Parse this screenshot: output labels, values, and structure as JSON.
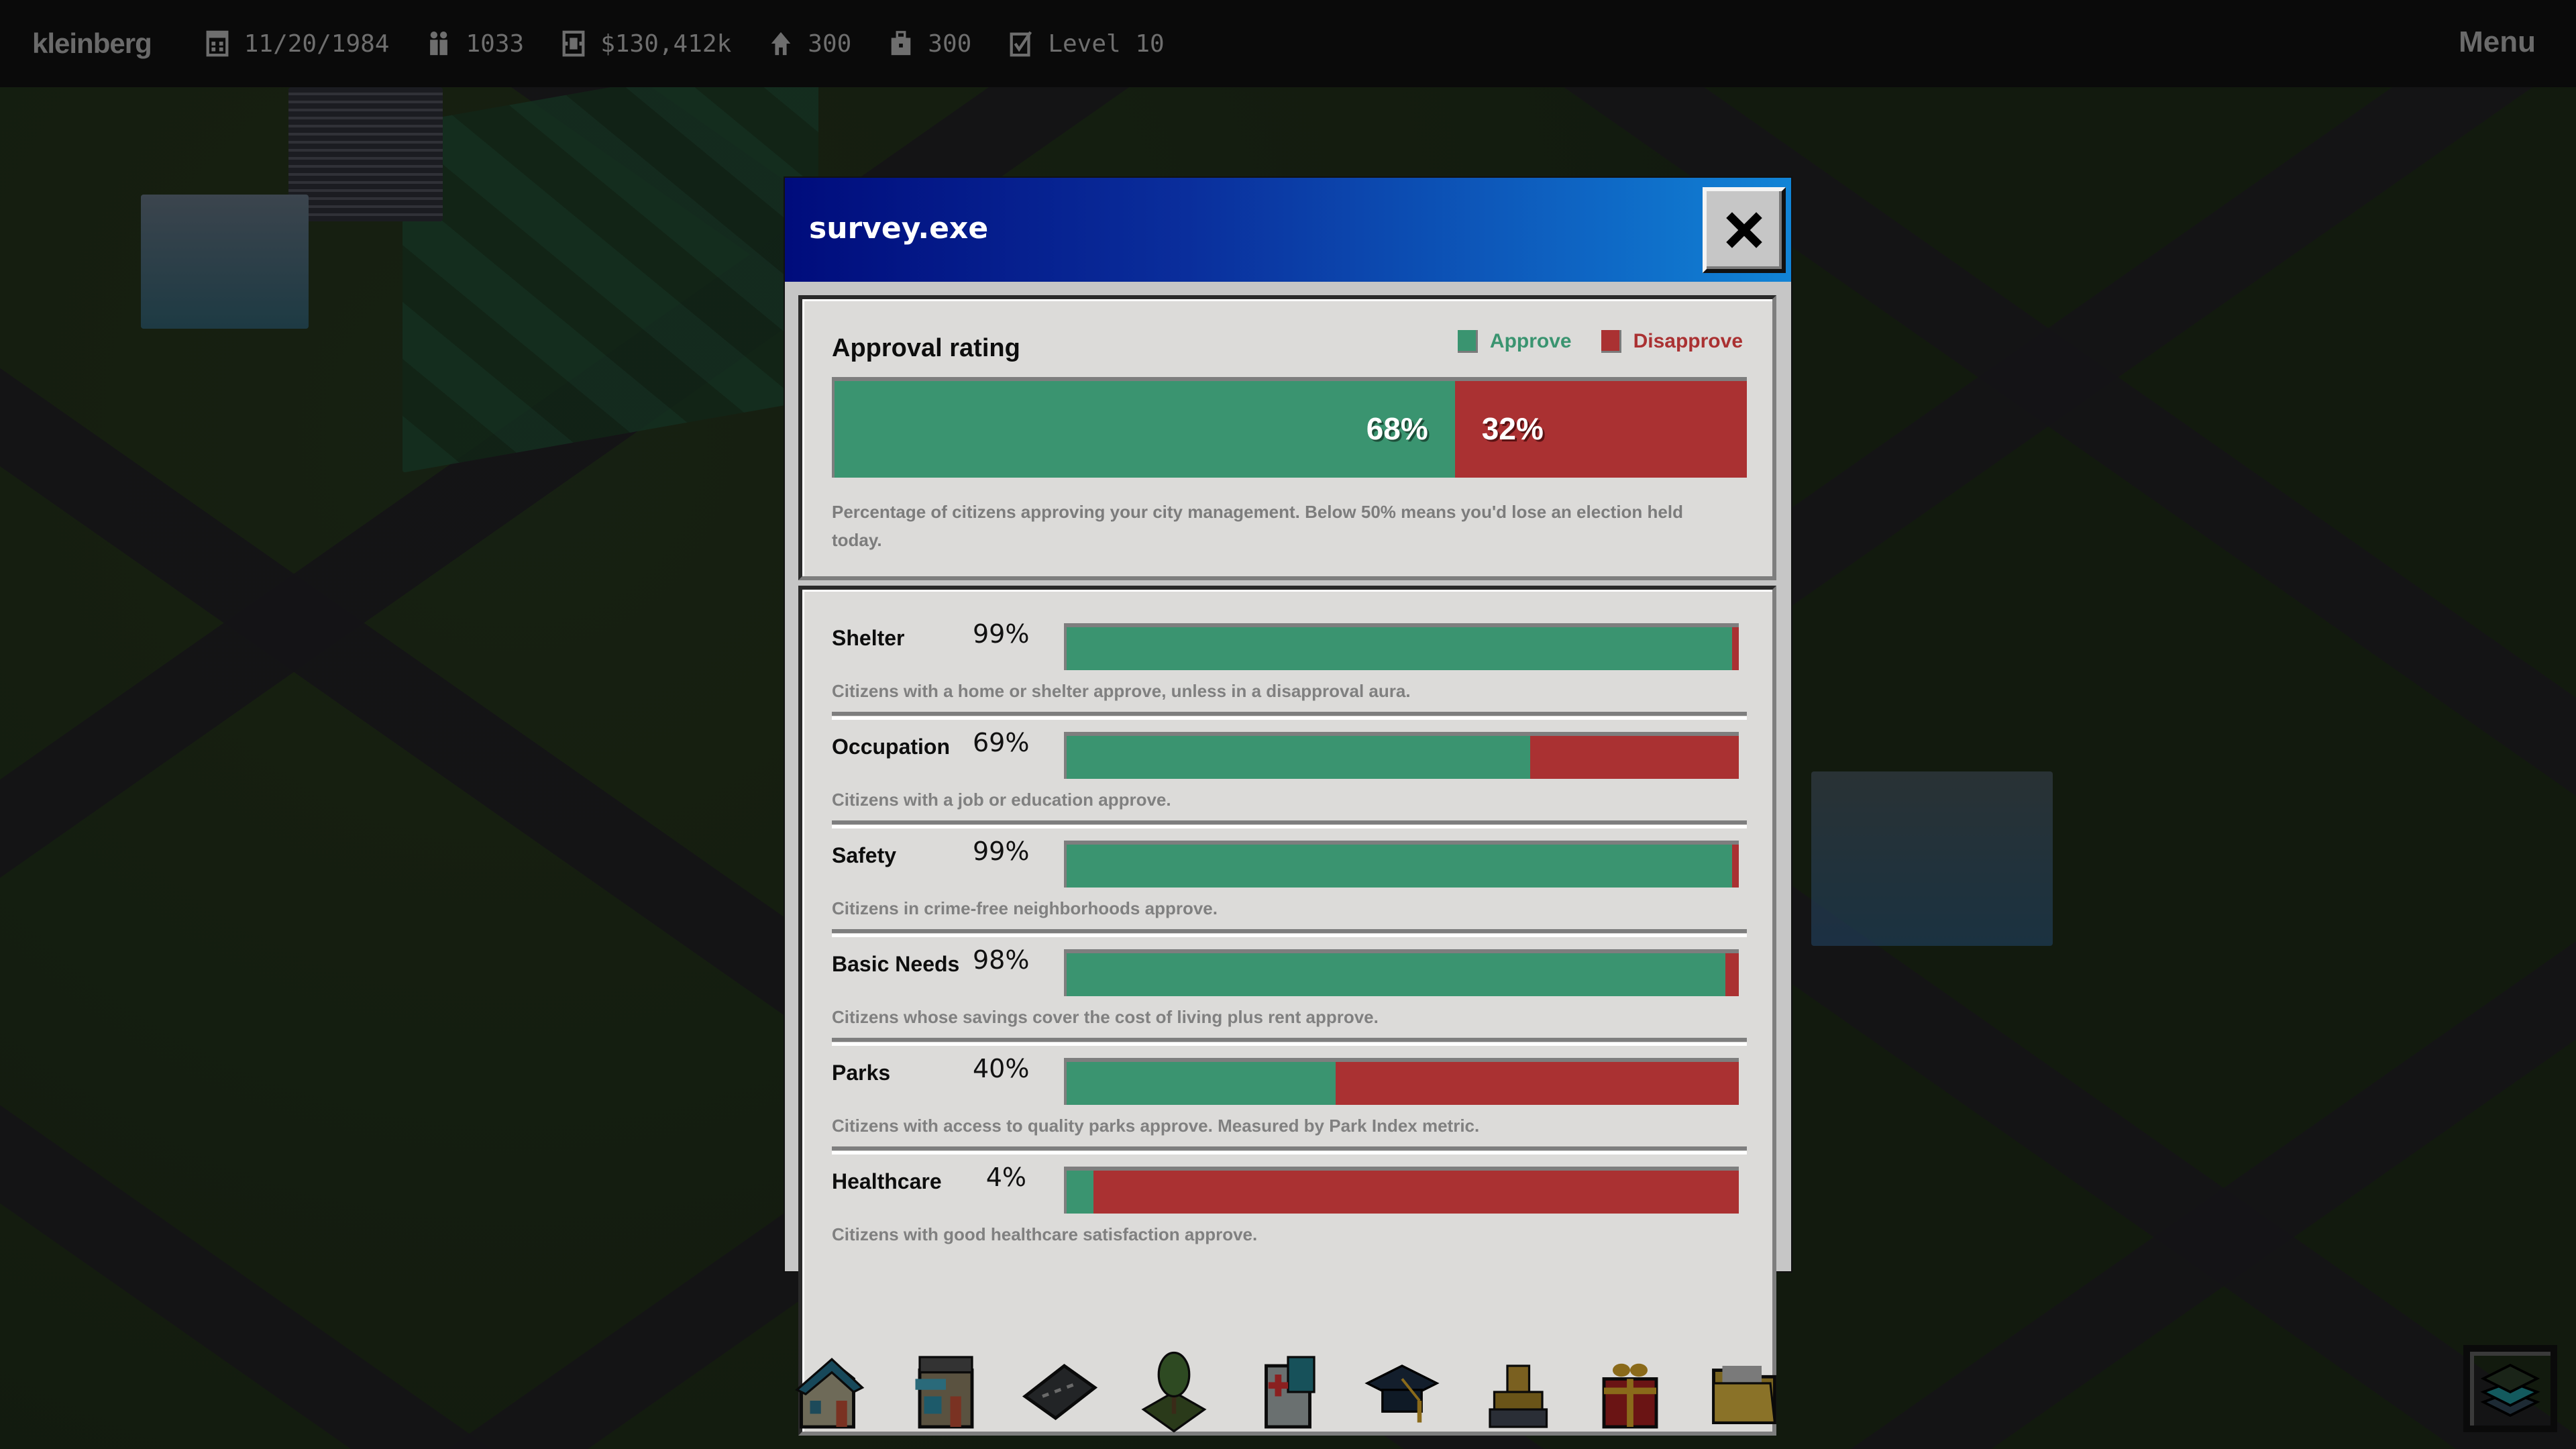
{
  "topbar": {
    "city_name": "kleinberg",
    "date": "11/20/1984",
    "population": "1033",
    "funds": "$130,412k",
    "housing": "300",
    "jobs": "300",
    "level": "Level 10",
    "menu_label": "Menu",
    "icons": [
      "calendar-icon",
      "people-icon",
      "money-icon",
      "house-icon",
      "briefcase-icon",
      "checkbox-icon"
    ]
  },
  "dialog": {
    "title": "survey.exe",
    "close_label": "X",
    "approval": {
      "title": "Approval rating",
      "legend": [
        {
          "label": "Approve",
          "color": "#3a9470"
        },
        {
          "label": "Disapprove",
          "color": "#aa3132"
        }
      ],
      "approve_pct": 68,
      "disapprove_pct": 32,
      "approve_label": "68%",
      "disapprove_label": "32%",
      "description": "Percentage of citizens approving your city management. Below 50% means you'd lose an election held today."
    },
    "factors": [
      {
        "name": "Shelter",
        "pct_label": "99%",
        "pct": 99,
        "description": "Citizens with a home or shelter approve, unless in a disapproval aura."
      },
      {
        "name": "Occupation",
        "pct_label": "69%",
        "pct": 69,
        "description": "Citizens with a job or education approve."
      },
      {
        "name": "Safety",
        "pct_label": "99%",
        "pct": 99,
        "description": "Citizens in crime-free neighborhoods approve."
      },
      {
        "name": "Basic Needs",
        "pct_label": "98%",
        "pct": 98,
        "description": "Citizens whose savings cover the cost of living plus rent approve."
      },
      {
        "name": "Parks",
        "pct_label": "40%",
        "pct": 40,
        "description": "Citizens with access to quality parks approve. Measured by Park Index metric."
      },
      {
        "name": "Healthcare",
        "pct_label": "4%",
        "pct": 4,
        "description": "Citizens with good healthcare satisfaction approve."
      }
    ]
  },
  "colors": {
    "approve": "#3a9470",
    "disapprove": "#aa3132",
    "title_gradient_start": "#000c7c",
    "title_gradient_end": "#1184d6"
  },
  "toolbar": {
    "tools": [
      {
        "name": "residential-tool",
        "icon": "house-icon"
      },
      {
        "name": "commercial-tool",
        "icon": "shop-icon"
      },
      {
        "name": "road-tool",
        "icon": "road-icon"
      },
      {
        "name": "park-tool",
        "icon": "tree-icon"
      },
      {
        "name": "healthcare-tool",
        "icon": "hospital-icon"
      },
      {
        "name": "education-tool",
        "icon": "graduation-cap-icon"
      },
      {
        "name": "bulldozer-tool",
        "icon": "bulldozer-icon"
      },
      {
        "name": "gift-tool",
        "icon": "gift-icon"
      },
      {
        "name": "files-tool",
        "icon": "folder-icon"
      }
    ],
    "layers_icon": "layers-icon"
  }
}
